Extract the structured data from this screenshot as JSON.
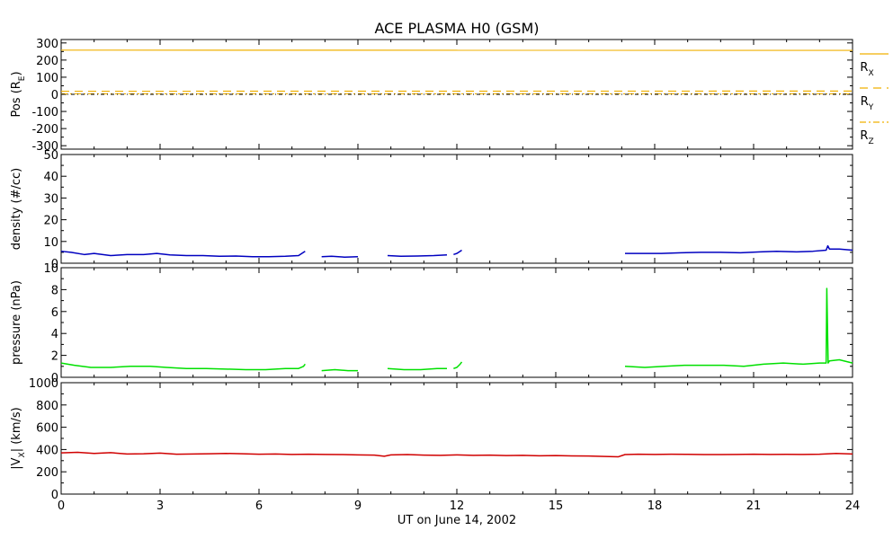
{
  "colors": {
    "rx": "#f0b000",
    "ry": "#f0b000",
    "rz": "#f0b000",
    "zero_line": "#000000",
    "density": "#0000c0",
    "pressure": "#00e000",
    "vx": "#d00000"
  },
  "chart_data": [
    {
      "type": "line",
      "panel": "position",
      "title": "ACE PLASMA H0 (GSM)",
      "ylabel_text": "Pos (R",
      "ylabel_sub": "E",
      "ylabel_close": ")",
      "ylim": [
        -320,
        320
      ],
      "yticks": [
        300,
        200,
        100,
        0,
        -100,
        -200,
        -300
      ],
      "ytick_labels": [
        "300",
        "200",
        "100",
        "0",
        "-100",
        "-200",
        "-300"
      ],
      "xlim": [
        0,
        24
      ],
      "grid": false,
      "legend_position": "right",
      "legend": [
        {
          "label": "R",
          "sub": "X",
          "style": "solid"
        },
        {
          "label": "R",
          "sub": "Y",
          "style": "dashed"
        },
        {
          "label": "R",
          "sub": "Z",
          "style": "dashdot"
        }
      ],
      "series": [
        {
          "name": "RX",
          "style": "solid",
          "x": [
            0,
            24
          ],
          "values": [
            258,
            257
          ]
        },
        {
          "name": "RY",
          "style": "dashed",
          "x": [
            0,
            24
          ],
          "values": [
            18,
            19
          ]
        },
        {
          "name": "RZ",
          "style": "dashdot",
          "x": [
            0,
            24
          ],
          "values": [
            3,
            3
          ]
        }
      ]
    },
    {
      "type": "line",
      "panel": "density",
      "ylabel": "density (#/cc)",
      "ylim": [
        0,
        50
      ],
      "yticks": [
        0,
        10,
        20,
        30,
        40,
        50
      ],
      "ytick_labels": [
        "0",
        "10",
        "20",
        "30",
        "40",
        "50"
      ],
      "xlim": [
        0,
        24
      ],
      "grid": false,
      "series": [
        {
          "segments": [
            {
              "x": [
                0,
                0.3,
                0.7,
                1.0,
                1.5,
                2.0,
                2.5,
                2.9,
                3.3,
                3.8,
                4.3,
                4.8,
                5.3,
                5.8,
                6.3,
                6.8,
                7.2,
                7.35,
                7.4
              ],
              "values": [
                5.5,
                5.0,
                4.0,
                4.5,
                3.5,
                4.0,
                4.0,
                4.5,
                3.8,
                3.5,
                3.5,
                3.2,
                3.3,
                3.0,
                3.0,
                3.2,
                3.5,
                5.0,
                5.5
              ]
            },
            {
              "x": [
                7.9,
                8.2,
                8.6,
                9.0
              ],
              "values": [
                3.0,
                3.2,
                2.8,
                3.0
              ]
            },
            {
              "x": [
                9.9,
                10.3,
                10.8,
                11.3,
                11.7
              ],
              "values": [
                3.5,
                3.2,
                3.3,
                3.5,
                3.8
              ]
            },
            {
              "x": [
                11.9,
                12.0,
                12.1,
                12.15
              ],
              "values": [
                4.0,
                4.5,
                5.5,
                6.0
              ]
            },
            {
              "x": [
                17.1,
                17.6,
                18.2,
                18.8,
                19.4,
                20.0,
                20.6,
                21.2,
                21.7,
                22.3,
                22.8,
                23.2,
                23.25,
                23.3,
                23.6,
                24.0
              ],
              "values": [
                4.5,
                4.5,
                4.5,
                4.8,
                5.0,
                5.0,
                4.8,
                5.2,
                5.5,
                5.2,
                5.5,
                6.0,
                8.0,
                6.5,
                6.5,
                6.0
              ]
            }
          ]
        }
      ]
    },
    {
      "type": "line",
      "panel": "pressure",
      "ylabel": "pressure (nPa)",
      "ylim": [
        0,
        10
      ],
      "yticks": [
        0,
        2,
        4,
        6,
        8,
        10
      ],
      "ytick_labels": [
        "0",
        "2",
        "4",
        "6",
        "8",
        "10"
      ],
      "xlim": [
        0,
        24
      ],
      "grid": false,
      "series": [
        {
          "segments": [
            {
              "x": [
                0,
                0.4,
                0.9,
                1.5,
                2.1,
                2.7,
                3.2,
                3.8,
                4.4,
                5.0,
                5.6,
                6.2,
                6.8,
                7.2,
                7.35,
                7.4
              ],
              "values": [
                1.3,
                1.1,
                0.9,
                0.9,
                1.0,
                1.0,
                0.9,
                0.8,
                0.8,
                0.75,
                0.7,
                0.7,
                0.8,
                0.8,
                1.0,
                1.2
              ]
            },
            {
              "x": [
                7.9,
                8.3,
                8.7,
                9.0
              ],
              "values": [
                0.6,
                0.7,
                0.6,
                0.6
              ]
            },
            {
              "x": [
                9.9,
                10.4,
                10.9,
                11.4,
                11.7
              ],
              "values": [
                0.8,
                0.7,
                0.7,
                0.8,
                0.8
              ]
            },
            {
              "x": [
                11.9,
                12.0,
                12.1,
                12.15
              ],
              "values": [
                0.8,
                0.9,
                1.2,
                1.4
              ]
            },
            {
              "x": [
                17.1,
                17.7,
                18.3,
                18.9,
                19.5,
                20.1,
                20.7,
                21.3,
                21.9,
                22.5,
                23.0,
                23.2,
                23.22,
                23.26,
                23.3,
                23.6,
                24.0
              ],
              "values": [
                1.0,
                0.9,
                1.0,
                1.1,
                1.1,
                1.1,
                1.0,
                1.2,
                1.3,
                1.2,
                1.3,
                1.3,
                8.1,
                1.3,
                1.5,
                1.6,
                1.3
              ]
            }
          ]
        }
      ]
    },
    {
      "type": "line",
      "panel": "vx",
      "ylabel_text": "|V",
      "ylabel_sub": "X",
      "ylabel_close": "| (km/s)",
      "ylim": [
        0,
        1000
      ],
      "yticks": [
        0,
        200,
        400,
        600,
        800,
        1000
      ],
      "ytick_labels": [
        "0",
        "200",
        "400",
        "600",
        "800",
        "1000"
      ],
      "xlim": [
        0,
        24
      ],
      "xticks": [
        0,
        3,
        6,
        9,
        12,
        15,
        18,
        21,
        24
      ],
      "xtick_labels": [
        "0",
        "3",
        "6",
        "9",
        "12",
        "15",
        "18",
        "21",
        "24"
      ],
      "xlabel": "UT on June 14, 2002",
      "grid": false,
      "series": [
        {
          "segments": [
            {
              "x": [
                0,
                0.5,
                1.0,
                1.5,
                2.0,
                2.5,
                3.0,
                3.5,
                4.0,
                4.5,
                5.0,
                5.5,
                6.0,
                6.5,
                7.0,
                7.5,
                8.0,
                8.5,
                9.0,
                9.5,
                9.8,
                10.0,
                10.5,
                11.0,
                11.5,
                12.0,
                12.5,
                13.0,
                13.5,
                14.0,
                14.5,
                15.0,
                15.5,
                16.0,
                16.5,
                16.9,
                17.1,
                17.5,
                18.0,
                18.5,
                19.0,
                19.5,
                20.0,
                20.5,
                21.0,
                21.5,
                22.0,
                22.5,
                23.0,
                23.5,
                24.0
              ],
              "values": [
                370,
                375,
                365,
                372,
                360,
                362,
                368,
                358,
                360,
                362,
                365,
                362,
                358,
                360,
                356,
                358,
                356,
                355,
                352,
                350,
                340,
                352,
                355,
                350,
                348,
                352,
                348,
                350,
                346,
                348,
                344,
                346,
                343,
                342,
                338,
                335,
                355,
                358,
                356,
                358,
                357,
                355,
                355,
                356,
                358,
                356,
                357,
                356,
                358,
                365,
                360
              ]
            }
          ]
        }
      ]
    }
  ]
}
